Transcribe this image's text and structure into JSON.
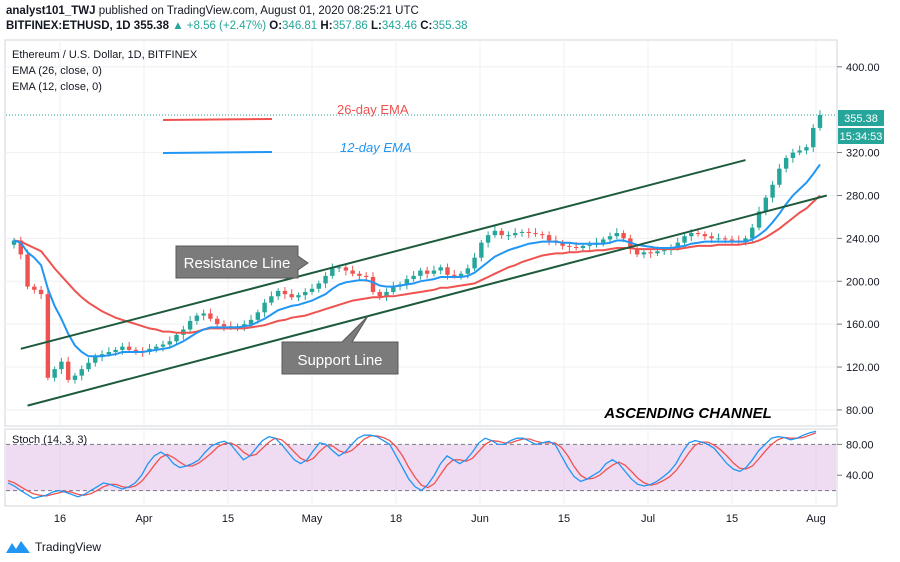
{
  "header": {
    "line1": {
      "author": "analyst101_TWJ",
      "published": "published on TradingView.com, August 01, 2020 08:25:21 UTC"
    },
    "line2": {
      "symbol": "BITFINEX:ETHUSD, 1D",
      "last": "355.38",
      "change": "▲ +8.56 (+2.47%)",
      "o_label": "O:",
      "o": "346.81",
      "h_label": "H:",
      "h": "357.86",
      "l_label": "L:",
      "l": "343.46",
      "c_label": "C:",
      "c": "355.38"
    }
  },
  "legend": {
    "title": "Ethereum / U.S. Dollar, 1D, BITFINEX",
    "ema26": "EMA (26, close, 0)",
    "ema12": "EMA (12, close, 0)"
  },
  "annotations": {
    "ema26_label": "26-day EMA",
    "ema12_label": "12-day EMA",
    "resistance": "Resistance Line",
    "support": "Support Line",
    "channel": "ASCENDING CHANNEL"
  },
  "price_tag": {
    "price": "355.38",
    "countdown": "15:34:53"
  },
  "stoch": {
    "label": "Stoch (14, 3, 3)"
  },
  "footer": {
    "brand": "TradingView"
  },
  "colors": {
    "up": "#26a69a",
    "down": "#ef5350",
    "ema26": "#ef5350",
    "ema12": "#2196f3",
    "channel": "#1e5b3d",
    "stoch_k": "#2196f3",
    "stoch_d": "#ef5350",
    "stoch_band": "#e1bee7"
  },
  "chart_data": [
    {
      "type": "candlestick",
      "title": "Ethereum / U.S. Dollar, 1D, BITFINEX",
      "x_ticks": [
        "16",
        "Apr",
        "15",
        "May",
        "18",
        "Jun",
        "15",
        "Jul",
        "15",
        "Aug"
      ],
      "y_ticks": [
        "80.00",
        "120.00",
        "160.00",
        "200.00",
        "240.00",
        "280.00",
        "320.00",
        "400.00"
      ],
      "ylim": [
        65,
        425
      ],
      "series_close": [
        238,
        225,
        195,
        192,
        188,
        110,
        118,
        125,
        108,
        112,
        118,
        124,
        130,
        132,
        134,
        136,
        139,
        136,
        135,
        134,
        137,
        139,
        141,
        144,
        150,
        155,
        163,
        168,
        170,
        165,
        160,
        158,
        157,
        158,
        160,
        164,
        171,
        180,
        186,
        191,
        188,
        185,
        187,
        190,
        193,
        198,
        205,
        212,
        213,
        210,
        207,
        205,
        204,
        190,
        186,
        190,
        195,
        197,
        202,
        205,
        210,
        207,
        210,
        213,
        206,
        205,
        207,
        212,
        222,
        236,
        243,
        247,
        243,
        243,
        245,
        246,
        245,
        244,
        243,
        238,
        236,
        233,
        232,
        231,
        233,
        234,
        236,
        239,
        242,
        245,
        240,
        230,
        225,
        227,
        226,
        228,
        229,
        231,
        236,
        242,
        245,
        244,
        242,
        240,
        240,
        239,
        238,
        237,
        240,
        250,
        265,
        278,
        290,
        305,
        315,
        320,
        322,
        325,
        343,
        355
      ],
      "ema12": [
        238,
        236,
        227,
        222,
        215,
        193,
        177,
        165,
        151,
        140,
        134,
        130,
        130,
        130,
        131,
        132,
        134,
        134,
        134,
        134,
        135,
        136,
        137,
        138,
        141,
        144,
        148,
        152,
        155,
        157,
        157,
        157,
        157,
        157,
        158,
        159,
        162,
        165,
        169,
        173,
        175,
        177,
        178,
        180,
        182,
        185,
        188,
        193,
        197,
        199,
        200,
        201,
        201,
        199,
        196,
        195,
        195,
        196,
        197,
        198,
        200,
        201,
        202,
        204,
        204,
        204,
        204,
        205,
        208,
        213,
        218,
        223,
        226,
        229,
        231,
        233,
        235,
        236,
        237,
        237,
        237,
        236,
        236,
        235,
        235,
        235,
        235,
        235,
        236,
        238,
        238,
        236,
        234,
        233,
        232,
        231,
        231,
        231,
        232,
        233,
        235,
        236,
        237,
        237,
        237,
        237,
        237,
        237,
        237,
        239,
        243,
        248,
        255,
        263,
        272,
        280,
        286,
        292,
        300,
        309
      ],
      "ema26": [
        238,
        237,
        234,
        231,
        228,
        220,
        212,
        205,
        198,
        191,
        185,
        180,
        176,
        172,
        169,
        166,
        164,
        162,
        160,
        158,
        156,
        155,
        153,
        153,
        152,
        152,
        152,
        153,
        155,
        156,
        156,
        156,
        156,
        156,
        156,
        157,
        158,
        159,
        161,
        163,
        164,
        166,
        167,
        168,
        170,
        172,
        174,
        176,
        178,
        180,
        182,
        183,
        184,
        185,
        185,
        186,
        186,
        187,
        188,
        189,
        190,
        191,
        192,
        194,
        194,
        195,
        196,
        197,
        198,
        201,
        204,
        207,
        210,
        213,
        215,
        218,
        220,
        222,
        224,
        225,
        226,
        226,
        227,
        227,
        228,
        228,
        229,
        229,
        230,
        231,
        231,
        231,
        230,
        230,
        230,
        230,
        230,
        230,
        230,
        231,
        232,
        233,
        233,
        233,
        234,
        234,
        234,
        234,
        235,
        236,
        238,
        241,
        245,
        249,
        254,
        259,
        264,
        268,
        274,
        280
      ],
      "resistance_line": [
        [
          1,
          137
        ],
        [
          108,
          313
        ]
      ],
      "support_line": [
        [
          2,
          84
        ],
        [
          120,
          280
        ]
      ]
    },
    {
      "type": "line",
      "title": "Stoch (14, 3, 3)",
      "y_ticks": [
        "40.00",
        "80.00"
      ],
      "ylim": [
        0,
        100
      ],
      "bands": [
        20,
        80
      ],
      "series": [
        {
          "values": [
            30,
            26,
            20,
            15,
            10,
            12,
            14,
            18,
            20,
            18,
            15,
            12,
            15,
            20,
            25,
            30,
            28,
            25,
            22,
            25,
            30,
            40,
            55,
            65,
            70,
            65,
            55,
            50,
            52,
            55,
            60,
            70,
            78,
            82,
            84,
            80,
            70,
            60,
            65,
            75,
            85,
            90,
            88,
            80,
            70,
            60,
            55,
            60,
            72,
            82,
            80,
            72,
            65,
            70,
            80,
            88,
            92,
            92,
            90,
            85,
            80,
            65,
            50,
            35,
            25,
            20,
            28,
            40,
            55,
            65,
            60,
            55,
            60,
            70,
            82,
            88,
            85,
            80,
            80,
            85,
            88,
            88,
            84,
            80,
            82,
            84,
            80,
            65,
            50,
            38,
            32,
            35,
            40,
            45,
            55,
            60,
            55,
            45,
            35,
            28,
            26,
            28,
            32,
            38,
            45,
            55,
            70,
            82,
            85,
            83,
            80,
            75,
            65,
            55,
            48,
            45,
            50,
            60,
            72,
            80,
            88,
            90,
            89,
            86,
            88,
            92,
            95,
            97
          ]
        },
        {
          "values": [
            33,
            30,
            25,
            20,
            16,
            14,
            13,
            15,
            17,
            19,
            18,
            15,
            14,
            16,
            20,
            25,
            28,
            28,
            25,
            24,
            26,
            32,
            42,
            53,
            63,
            67,
            63,
            57,
            52,
            52,
            56,
            62,
            69,
            77,
            81,
            82,
            78,
            70,
            65,
            67,
            75,
            83,
            88,
            86,
            79,
            70,
            62,
            58,
            62,
            71,
            78,
            78,
            72,
            69,
            72,
            79,
            87,
            91,
            91,
            89,
            85,
            77,
            65,
            50,
            37,
            27,
            24,
            29,
            41,
            53,
            60,
            60,
            58,
            62,
            71,
            80,
            85,
            84,
            82,
            82,
            85,
            87,
            87,
            84,
            82,
            82,
            82,
            76,
            65,
            51,
            40,
            35,
            36,
            40,
            47,
            53,
            57,
            53,
            45,
            36,
            30,
            27,
            29,
            33,
            38,
            46,
            57,
            69,
            79,
            83,
            83,
            79,
            73,
            65,
            56,
            49,
            48,
            52,
            61,
            71,
            80,
            86,
            89,
            88,
            88,
            89,
            92,
            95
          ]
        }
      ]
    }
  ]
}
